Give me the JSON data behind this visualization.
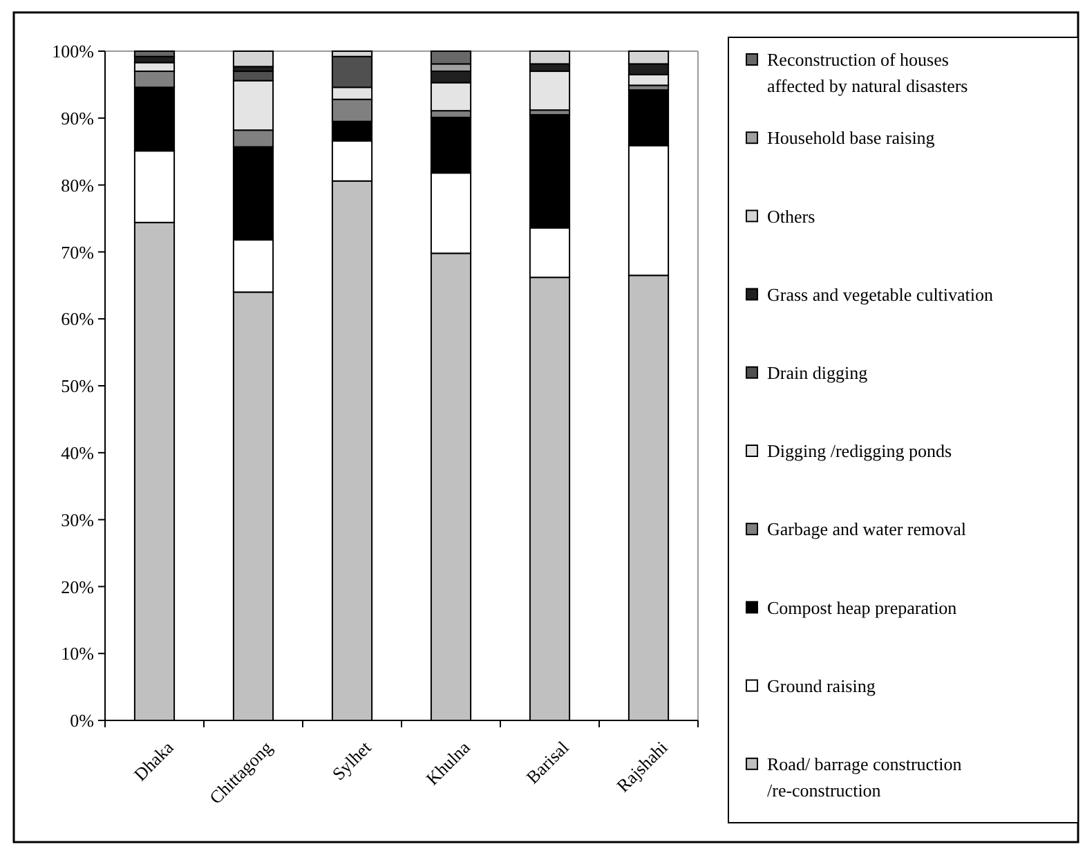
{
  "chart_data": {
    "type": "bar",
    "stacked": true,
    "categories": [
      "Dhaka",
      "Chittagong",
      "Sylhet",
      "Khulna",
      "Barisal",
      "Rajshahi"
    ],
    "ylim": [
      0,
      100
    ],
    "yticks": [
      {
        "value": 0,
        "label": "0%"
      },
      {
        "value": 10,
        "label": "10%"
      },
      {
        "value": 20,
        "label": "20%"
      },
      {
        "value": 30,
        "label": "30%"
      },
      {
        "value": 40,
        "label": "40%"
      },
      {
        "value": 50,
        "label": "50%"
      },
      {
        "value": 60,
        "label": "60%"
      },
      {
        "value": 70,
        "label": "70%"
      },
      {
        "value": 80,
        "label": "80%"
      },
      {
        "value": 90,
        "label": "90%"
      },
      {
        "value": 100,
        "label": "100%"
      }
    ],
    "legend": "right",
    "grid": false,
    "series": [
      {
        "name": "Road/ barrage construction /re-construction",
        "color": "#c0c0c0",
        "values": [
          74.4,
          64.0,
          80.6,
          69.8,
          66.2,
          66.5
        ]
      },
      {
        "name": "Ground raising",
        "color": "#ffffff",
        "values": [
          10.7,
          7.8,
          6.0,
          12.0,
          7.4,
          19.4
        ]
      },
      {
        "name": "Compost heap preparation",
        "color": "#000000",
        "values": [
          9.5,
          13.9,
          2.9,
          8.3,
          16.9,
          8.3
        ]
      },
      {
        "name": "Garbage and water removal",
        "color": "#808080",
        "values": [
          2.4,
          2.5,
          3.3,
          1.0,
          0.7,
          0.7
        ]
      },
      {
        "name": "Digging /redigging ponds",
        "color": "#e4e4e4",
        "values": [
          1.3,
          7.4,
          1.8,
          4.2,
          5.8,
          1.6
        ]
      },
      {
        "name": "Drain digging",
        "color": "#505050",
        "values": [
          0,
          1.4,
          4.6,
          0,
          0,
          0
        ]
      },
      {
        "name": "Grass and vegetable cultivation",
        "color": "#202020",
        "values": [
          0.9,
          0.7,
          0,
          1.7,
          1.1,
          1.6
        ]
      },
      {
        "name": "Others",
        "color": "#d4d4d4",
        "values": [
          0,
          2.3,
          0.8,
          0,
          1.9,
          1.9
        ]
      },
      {
        "name": "Household base raising",
        "color": "#a0a0a0",
        "values": [
          0,
          0,
          0,
          1.1,
          0,
          0
        ]
      },
      {
        "name": "Reconstruction of houses affected by natural disasters",
        "color": "#686868",
        "values": [
          0.8,
          0,
          0,
          1.9,
          0,
          0
        ]
      }
    ]
  }
}
